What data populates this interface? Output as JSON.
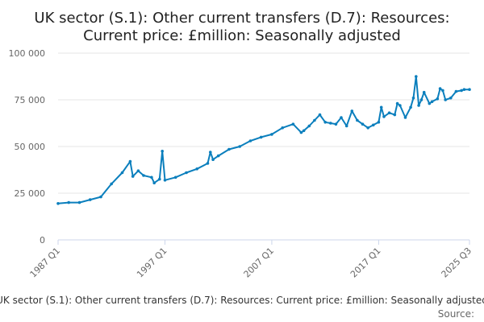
{
  "chart_data": {
    "type": "line",
    "title_lines": [
      "UK sector (S.1): Other current transfers (D.7): Resources:",
      "Current price: £million: Seasonally adjusted"
    ],
    "footer_caption": "UK sector (S.1): Other current transfers (D.7): Resources: Current price: £million: Seasonally adjusted",
    "source_label": "Source:",
    "x_ticks": [
      "1987 Q1",
      "1997 Q1",
      "2007 Q1",
      "2017 Q1",
      "2025 Q3"
    ],
    "x_tick_values": [
      1987.0,
      1997.0,
      2007.0,
      2017.0,
      2025.5
    ],
    "y_ticks": [
      "0",
      "25 000",
      "50 000",
      "75 000",
      "100 000"
    ],
    "y_tick_values": [
      0,
      25000,
      50000,
      75000,
      100000
    ],
    "ylim": [
      0,
      100000
    ],
    "xlim": [
      1987.0,
      2025.5
    ],
    "grid": true,
    "series_color": "#0b7fbd",
    "series": [
      {
        "name": "",
        "points": [
          [
            1987.0,
            19500
          ],
          [
            1988.0,
            20000
          ],
          [
            1989.0,
            20000
          ],
          [
            1990.0,
            21500
          ],
          [
            1991.0,
            23000
          ],
          [
            1992.0,
            30000
          ],
          [
            1993.0,
            36000
          ],
          [
            1993.75,
            42000
          ],
          [
            1994.0,
            34000
          ],
          [
            1994.5,
            37000
          ],
          [
            1995.0,
            34500
          ],
          [
            1995.75,
            33500
          ],
          [
            1996.0,
            30500
          ],
          [
            1996.5,
            32500
          ],
          [
            1996.75,
            47500
          ],
          [
            1997.0,
            32000
          ],
          [
            1998.0,
            33500
          ],
          [
            1999.0,
            36000
          ],
          [
            2000.0,
            38000
          ],
          [
            2001.0,
            41000
          ],
          [
            2001.25,
            47000
          ],
          [
            2001.5,
            43000
          ],
          [
            2002.0,
            45000
          ],
          [
            2003.0,
            48500
          ],
          [
            2004.0,
            50000
          ],
          [
            2005.0,
            53000
          ],
          [
            2006.0,
            55000
          ],
          [
            2007.0,
            56500
          ],
          [
            2008.0,
            60000
          ],
          [
            2009.0,
            62000
          ],
          [
            2009.75,
            57500
          ],
          [
            2010.0,
            58500
          ],
          [
            2010.5,
            61000
          ],
          [
            2011.0,
            64000
          ],
          [
            2011.5,
            67000
          ],
          [
            2012.0,
            63000
          ],
          [
            2012.5,
            62500
          ],
          [
            2013.0,
            62000
          ],
          [
            2013.5,
            65500
          ],
          [
            2014.0,
            61000
          ],
          [
            2014.5,
            69000
          ],
          [
            2015.0,
            64000
          ],
          [
            2015.5,
            62000
          ],
          [
            2016.0,
            60000
          ],
          [
            2016.5,
            61500
          ],
          [
            2017.0,
            63000
          ],
          [
            2017.25,
            71000
          ],
          [
            2017.5,
            66000
          ],
          [
            2018.0,
            68000
          ],
          [
            2018.5,
            67000
          ],
          [
            2018.75,
            73000
          ],
          [
            2019.0,
            72000
          ],
          [
            2019.5,
            65500
          ],
          [
            2020.0,
            71000
          ],
          [
            2020.25,
            76000
          ],
          [
            2020.5,
            87500
          ],
          [
            2020.75,
            72000
          ],
          [
            2021.0,
            75000
          ],
          [
            2021.25,
            79000
          ],
          [
            2021.75,
            73000
          ],
          [
            2022.0,
            74000
          ],
          [
            2022.5,
            75500
          ],
          [
            2022.75,
            81000
          ],
          [
            2023.0,
            80000
          ],
          [
            2023.25,
            75000
          ],
          [
            2023.75,
            76000
          ],
          [
            2024.25,
            79500
          ],
          [
            2024.75,
            80000
          ],
          [
            2025.0,
            80500
          ],
          [
            2025.5,
            80500
          ]
        ]
      }
    ]
  }
}
